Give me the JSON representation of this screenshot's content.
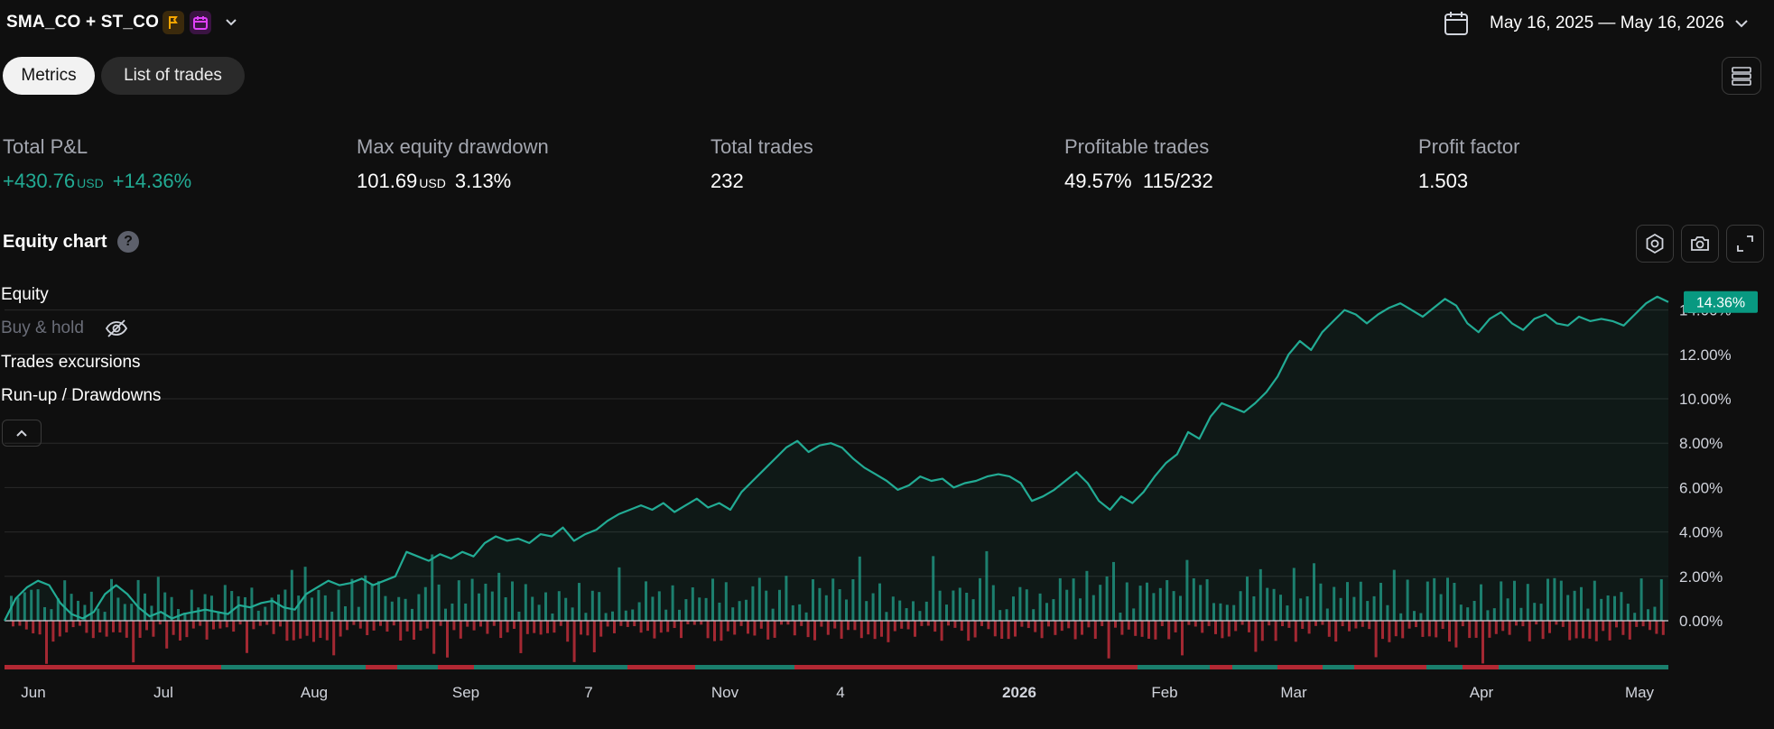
{
  "header": {
    "strategy_title": "SMA_CO + ST_CO",
    "date_range": "May 16, 2025 — May 16, 2026"
  },
  "tabs": [
    {
      "label": "Metrics",
      "active": true
    },
    {
      "label": "List of trades",
      "active": false
    }
  ],
  "metrics": {
    "total_pnl": {
      "label": "Total P&L",
      "value": "+430.76",
      "unit": "USD",
      "pct": "+14.36%"
    },
    "max_drawdown": {
      "label": "Max equity drawdown",
      "value": "101.69",
      "unit": "USD",
      "pct": "3.13%"
    },
    "total_trades": {
      "label": "Total trades",
      "value": "232"
    },
    "profitable_trades": {
      "label": "Profitable trades",
      "pct": "49.57%",
      "ratio": "115/232"
    },
    "profit_factor": {
      "label": "Profit factor",
      "value": "1.503"
    }
  },
  "equity_chart": {
    "title": "Equity chart",
    "help_glyph": "?",
    "legend": [
      "Equity",
      "Buy & hold",
      "Trades excursions",
      "Run-up / Drawdowns"
    ],
    "current_badge": "14.36%",
    "colors": {
      "equity": "#22ab94",
      "drawdown": "#f23645",
      "badge_bg": "#089981"
    }
  },
  "chart_data": {
    "type": "line",
    "series": [
      {
        "name": "Equity",
        "values": [
          0.0,
          1.0,
          1.5,
          1.8,
          1.6,
          0.8,
          0.3,
          0.1,
          0.4,
          1.2,
          1.6,
          1.2,
          0.6,
          0.2,
          0.4,
          0.1,
          0.3,
          0.4,
          0.5,
          0.4,
          0.3,
          0.7,
          0.6,
          0.8,
          0.9,
          0.6,
          0.5,
          1.2,
          1.5,
          1.8,
          1.6,
          1.7,
          1.9,
          1.6,
          1.8,
          2.0,
          3.1,
          2.9,
          2.7,
          3.0,
          2.8,
          3.1,
          2.9,
          3.5,
          3.8,
          3.6,
          3.7,
          3.5,
          3.9,
          3.8,
          4.2,
          3.6,
          3.9,
          4.1,
          4.5,
          4.8,
          5.0,
          5.2,
          5.0,
          5.3,
          4.9,
          5.2,
          5.5,
          5.1,
          5.3,
          5.0,
          5.8,
          6.3,
          6.8,
          7.3,
          7.8,
          8.1,
          7.6,
          7.9,
          8.0,
          7.8,
          7.3,
          6.9,
          6.6,
          6.3,
          5.9,
          6.1,
          6.5,
          6.3,
          6.4,
          6.0,
          6.2,
          6.3,
          6.5,
          6.6,
          6.5,
          6.2,
          5.4,
          5.6,
          5.9,
          6.3,
          6.7,
          6.2,
          5.4,
          5.0,
          5.6,
          5.3,
          5.8,
          6.5,
          7.1,
          7.5,
          8.5,
          8.2,
          9.2,
          9.8,
          9.6,
          9.4,
          9.8,
          10.3,
          11.0,
          12.0,
          12.6,
          12.2,
          13.0,
          13.5,
          14.0,
          13.8,
          13.4,
          13.8,
          14.1,
          14.3,
          14.0,
          13.7,
          14.1,
          14.5,
          14.2,
          13.4,
          13.0,
          13.6,
          13.9,
          13.4,
          13.1,
          13.6,
          13.8,
          13.4,
          13.3,
          13.7,
          13.5,
          13.6,
          13.5,
          13.3,
          13.8,
          14.3,
          14.6,
          14.36
        ]
      }
    ],
    "x_ticks": [
      "Jun",
      "Jul",
      "Aug",
      "Sep",
      "7",
      "Nov",
      "4",
      "2026",
      "Feb",
      "Mar",
      "Apr",
      "May"
    ],
    "y_ticks": [
      "0.00%",
      "2.00%",
      "4.00%",
      "6.00%",
      "8.00%",
      "10.00%",
      "12.00%",
      "14.00%"
    ],
    "ylim": [
      0,
      14.8
    ],
    "grid": true
  }
}
